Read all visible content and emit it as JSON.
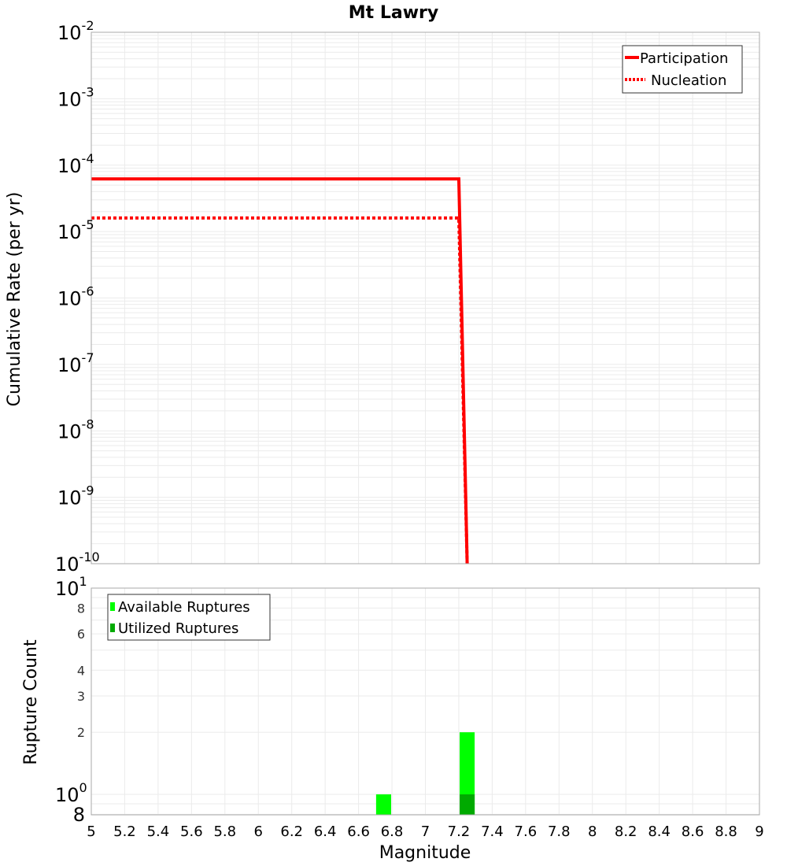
{
  "chart_data": [
    {
      "type": "line",
      "title": "Mt Lawry",
      "xlabel": "",
      "ylabel": "Cumulative Rate (per yr)",
      "xlim": [
        5,
        9
      ],
      "ylim": [
        1e-10,
        0.01
      ],
      "yscale": "log",
      "grid": true,
      "legend_position": "upper right",
      "ytick_labels": [
        "10^-2",
        "10^-3",
        "10^-4",
        "10^-5",
        "10^-6",
        "10^-7",
        "10^-8",
        "10^-9",
        "10^-10"
      ],
      "series": [
        {
          "name": "Participation",
          "style": "solid",
          "color": "#ff0000",
          "x": [
            5.0,
            7.2,
            7.25
          ],
          "y": [
            6.2e-05,
            6.2e-05,
            1e-10
          ]
        },
        {
          "name": "Nucleation",
          "style": "dotted",
          "color": "#ff0000",
          "x": [
            5.0,
            7.2,
            7.25
          ],
          "y": [
            1.6e-05,
            1.6e-05,
            1e-10
          ]
        }
      ]
    },
    {
      "type": "bar",
      "title": "",
      "xlabel": "Magnitude",
      "ylabel": "Rupture Count",
      "xlim": [
        5,
        9
      ],
      "ylim": [
        0.8,
        10
      ],
      "yscale": "log",
      "grid": true,
      "legend_position": "upper left",
      "xtick_labels": [
        "5",
        "5.2",
        "5.4",
        "5.6",
        "5.8",
        "6",
        "6.2",
        "6.4",
        "6.6",
        "6.8",
        "7",
        "7.2",
        "7.4",
        "7.6",
        "7.8",
        "8",
        "8.2",
        "8.4",
        "8.6",
        "8.8",
        "9"
      ],
      "ytick_labels": [
        "8",
        "10^0",
        "2",
        "3",
        "4",
        "6",
        "8",
        "10^1"
      ],
      "categories": [
        6.75,
        7.25
      ],
      "series": [
        {
          "name": "Available Ruptures",
          "color": "#00ff00",
          "values": [
            1,
            2
          ]
        },
        {
          "name": "Utilized Ruptures",
          "color": "#00aa00",
          "values": [
            0,
            1
          ]
        }
      ]
    }
  ],
  "labels": {
    "title": "Mt Lawry",
    "top_ylabel": "Cumulative Rate (per yr)",
    "bottom_ylabel": "Rupture Count",
    "xlabel": "Magnitude",
    "legend_top": [
      "Participation",
      "Nucleation"
    ],
    "legend_bottom": [
      "Available Ruptures",
      "Utilized Ruptures"
    ]
  },
  "colors": {
    "participation": "#ff0000",
    "nucleation": "#ff0000",
    "available": "#00ff00",
    "utilized": "#00aa00",
    "grid": "#ebebeb",
    "frame": "#aaaaaa"
  }
}
